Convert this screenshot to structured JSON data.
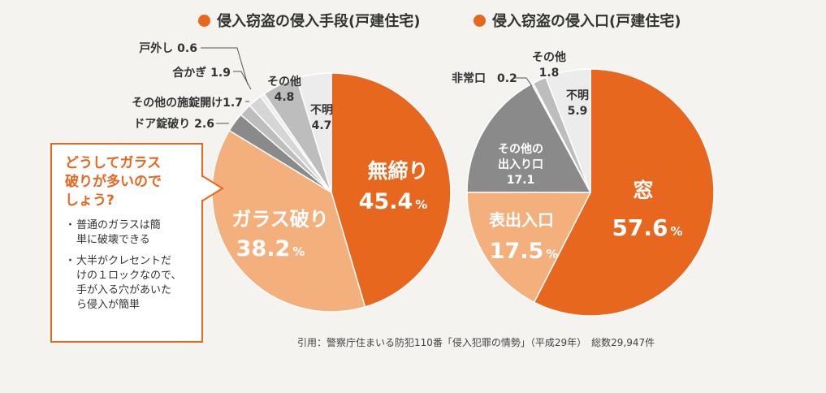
{
  "colors": {
    "accent": "#e8671f",
    "light_orange": "#f3b07c",
    "dark_gray": "#8a8a8a",
    "mid_gray": "#bdbdbd",
    "light_gray": "#d6d6d6",
    "very_light_gray": "#ececec",
    "background": "#f4f3f0"
  },
  "chart_data": [
    {
      "type": "pie",
      "title": "侵入窃盗の侵入手段(戸建住宅)",
      "slices": [
        {
          "label": "無締り",
          "value": 45.4
        },
        {
          "label": "ガラス破り",
          "value": 38.2
        },
        {
          "label": "ドア錠破り",
          "value": 2.6
        },
        {
          "label": "その他の施錠開け",
          "value": 1.7
        },
        {
          "label": "合かぎ",
          "value": 1.9
        },
        {
          "label": "戸外し",
          "value": 0.6
        },
        {
          "label": "その他",
          "value": 4.8
        },
        {
          "label": "不明",
          "value": 4.7
        }
      ]
    },
    {
      "type": "pie",
      "title": "侵入窃盗の侵入口(戸建住宅)",
      "slices": [
        {
          "label": "窓",
          "value": 57.6
        },
        {
          "label": "表出入口",
          "value": 17.5
        },
        {
          "label": "その他の出入り口",
          "value": 17.1
        },
        {
          "label": "非常口",
          "value": 0.2
        },
        {
          "label": "その他",
          "value": 1.8
        },
        {
          "label": "不明",
          "value": 5.9
        }
      ]
    }
  ],
  "labels": {
    "left": {
      "mushimari": "無締り",
      "mushimari_val": "45.4",
      "glass": "ガラス破り",
      "glass_val": "38.2",
      "pct": "%",
      "door": "ドア錠破り 2.6",
      "other_lock": "その他の施錠開け1.7",
      "aikagi": "合かぎ 1.9",
      "togaishi": "戸外し 0.6",
      "sonota": "その他",
      "sonota_val": "4.8",
      "fumei": "不明",
      "fumei_val": "4.7"
    },
    "right": {
      "mado": "窓",
      "mado_val": "57.6",
      "omote": "表出入口",
      "omote_val": "17.5",
      "pct": "%",
      "other_exit_1": "その他の",
      "other_exit_2": "出入り口",
      "other_exit_val": "17.1",
      "hijo": "非常口",
      "hijo_val": "0.2",
      "sonota": "その他",
      "sonota_val": "1.8",
      "fumei": "不明",
      "fumei_val": "5.9"
    }
  },
  "bubble": {
    "question": "どうしてガラス\n破りが多いので\nしょう?",
    "bullet_char": "・",
    "points": [
      "普通のガラスは簡\n単に破壊できる",
      "大半がクレセントだ\nけの１ロックなので、\n手が入る穴があいた\nら侵入が簡単"
    ]
  },
  "citation": "引用：警察庁住まいる防犯110番「侵入犯罪の情勢」（平成29年）　総数29,947件"
}
